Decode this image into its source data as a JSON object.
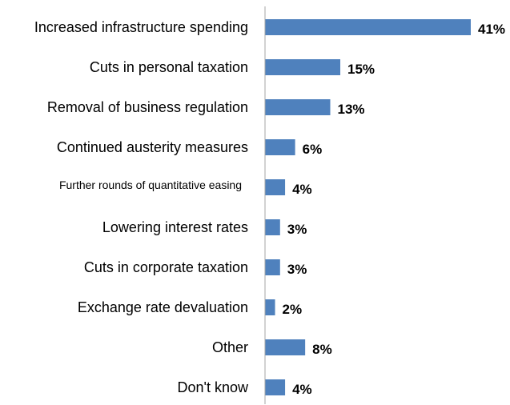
{
  "chart_data": {
    "type": "bar",
    "orientation": "horizontal",
    "categories": [
      "Increased infrastructure spending",
      "Cuts in personal taxation",
      "Removal of business regulation",
      "Continued austerity measures",
      "Further rounds of quantitative easing",
      "Lowering interest rates",
      "Cuts in corporate taxation",
      "Exchange rate devaluation",
      "Other",
      "Don't know"
    ],
    "values": [
      41,
      15,
      13,
      6,
      4,
      3,
      3,
      2,
      8,
      4
    ],
    "value_labels": [
      "41%",
      "15%",
      "13%",
      "6%",
      "4%",
      "3%",
      "3%",
      "2%",
      "8%",
      "4%"
    ],
    "xlim": [
      0,
      41
    ],
    "bar_color": "#4f81bd",
    "axis_color": "#a6a6a6",
    "grid": false,
    "legend": "none"
  }
}
